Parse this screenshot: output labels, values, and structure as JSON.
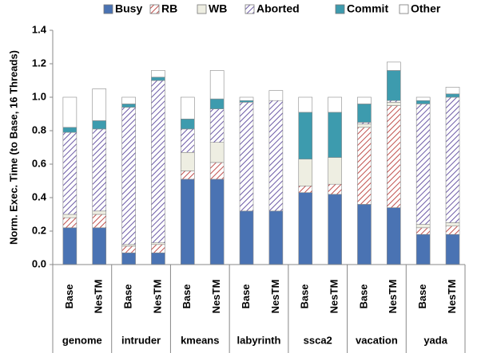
{
  "chart_data": {
    "type": "stacked_bar",
    "y_label": "Norm. Exec. Time (to Base, 16 Threads)",
    "categories": [
      "Base",
      "NesTM",
      "Base",
      "NesTM",
      "Base",
      "NesTM",
      "Base",
      "NesTM",
      "Base",
      "NesTM",
      "Base",
      "NesTM",
      "Base",
      "NesTM"
    ],
    "groups": [
      "genome",
      "intruder",
      "kmeans",
      "labyrinth",
      "ssca2",
      "vacation",
      "yada"
    ],
    "series": [
      {
        "name": "Busy",
        "color": "#4a73b3",
        "values": [
          0.22,
          0.22,
          0.07,
          0.07,
          0.51,
          0.51,
          0.32,
          0.32,
          0.43,
          0.42,
          0.36,
          0.34,
          0.18,
          0.18
        ]
      },
      {
        "name": "RB",
        "color": "#c0504d",
        "hatch": true,
        "values": [
          0.06,
          0.08,
          0.04,
          0.05,
          0.05,
          0.1,
          0,
          0,
          0.04,
          0.06,
          0.46,
          0.61,
          0.04,
          0.05
        ]
      },
      {
        "name": "WB",
        "color": "#eeeee2",
        "values": [
          0.02,
          0.02,
          0.01,
          0.01,
          0.11,
          0.12,
          0,
          0,
          0.16,
          0.16,
          0.02,
          0.02,
          0.02,
          0.02
        ]
      },
      {
        "name": "Aborted",
        "color": "#6c5aa6",
        "hatch": true,
        "values": [
          0.49,
          0.49,
          0.82,
          0.97,
          0.14,
          0.2,
          0.65,
          0.66,
          0,
          0,
          0.01,
          0.01,
          0.72,
          0.75
        ]
      },
      {
        "name": "Commit",
        "color": "#3d9bae",
        "values": [
          0.03,
          0.05,
          0.02,
          0.02,
          0.06,
          0.06,
          0.01,
          0,
          0.28,
          0.27,
          0.11,
          0.18,
          0.02,
          0.02
        ]
      },
      {
        "name": "Other",
        "color": "#ffffff",
        "values": [
          0.18,
          0.19,
          0.04,
          0.04,
          0.13,
          0.17,
          0.02,
          0.06,
          0.09,
          0.09,
          0.04,
          0.05,
          0.02,
          0.04
        ]
      }
    ],
    "ylim": [
      0,
      1.4
    ],
    "yticks": [
      {
        "value": 0,
        "label": "0.0"
      },
      0.2,
      0.4,
      0.6,
      0.8,
      {
        "value": 1,
        "label": "1.0"
      },
      1.2,
      1.4
    ],
    "legend": "top"
  }
}
